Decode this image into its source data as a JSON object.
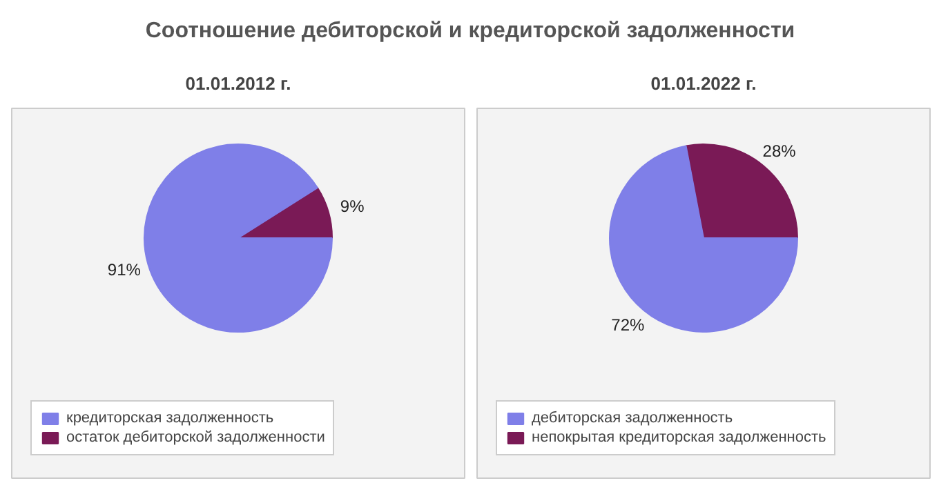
{
  "chart_data": [
    {
      "type": "pie",
      "title": "Соотношение дебиторской и кредиторской задолженности",
      "subtitle": "01.01.2012 г.",
      "categories": [
        "кредиторская задолженность",
        "остаток дебиторской задолженности"
      ],
      "values": [
        91,
        9
      ],
      "colors": [
        "#7f7fe8",
        "#7a1a56"
      ],
      "value_labels": [
        "91%",
        "9%"
      ],
      "legend": "bottom"
    },
    {
      "type": "pie",
      "subtitle": "01.01.2022 г.",
      "categories": [
        "дебиторская задолженность",
        "непокрытая кредиторская задолженность"
      ],
      "values": [
        72,
        28
      ],
      "colors": [
        "#7f7fe8",
        "#7a1a56"
      ],
      "value_labels": [
        "72%",
        "28%"
      ],
      "legend": "bottom"
    }
  ]
}
